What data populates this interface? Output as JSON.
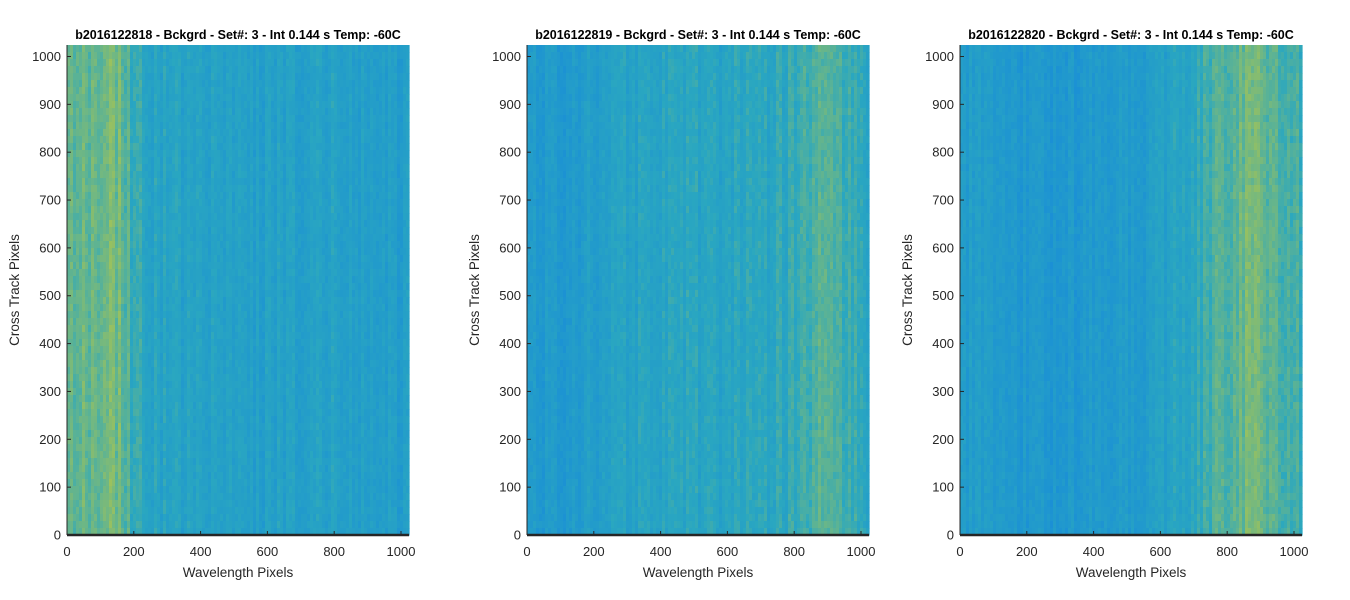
{
  "colors": {
    "low": "#1a8fd6",
    "mid": "#2aa7c0",
    "high": "#9fc25a",
    "axis": "#262626"
  },
  "chart_data": [
    {
      "type": "heatmap",
      "title": "b2016122818 - Bckgrd - Set#: 3 - Int 0.144 s Temp: -60C",
      "xlabel": "Wavelength Pixels",
      "ylabel": "Cross Track Pixels",
      "xlim": [
        0,
        1024
      ],
      "ylim": [
        0,
        1024
      ],
      "xticks": [
        0,
        200,
        400,
        600,
        800,
        1000
      ],
      "yticks": [
        0,
        100,
        200,
        300,
        400,
        500,
        600,
        700,
        800,
        900,
        1000
      ],
      "grid": false,
      "colormap": "parula",
      "column_profile": {
        "x": [
          0,
          60,
          120,
          160,
          200,
          260,
          350,
          450,
          550,
          650,
          750,
          850,
          950,
          1024
        ],
        "relative_level": [
          0.7,
          0.78,
          0.82,
          0.8,
          0.55,
          0.4,
          0.37,
          0.35,
          0.33,
          0.35,
          0.4,
          0.33,
          0.3,
          0.3
        ]
      }
    },
    {
      "type": "heatmap",
      "title": "b2016122819 - Bckgrd - Set#: 3 - Int 0.144 s Temp: -60C",
      "xlabel": "Wavelength Pixels",
      "ylabel": "Cross Track Pixels",
      "xlim": [
        0,
        1024
      ],
      "ylim": [
        0,
        1024
      ],
      "xticks": [
        0,
        200,
        400,
        600,
        800,
        1000
      ],
      "yticks": [
        0,
        100,
        200,
        300,
        400,
        500,
        600,
        700,
        800,
        900,
        1000
      ],
      "grid": false,
      "colormap": "parula",
      "column_profile": {
        "x": [
          0,
          100,
          200,
          300,
          400,
          500,
          600,
          700,
          800,
          850,
          900,
          950,
          1024
        ],
        "relative_level": [
          0.2,
          0.22,
          0.3,
          0.38,
          0.45,
          0.45,
          0.42,
          0.45,
          0.52,
          0.65,
          0.78,
          0.6,
          0.45
        ]
      }
    },
    {
      "type": "heatmap",
      "title": "b2016122820 - Bckgrd - Set#: 3 - Int 0.144 s Temp: -60C",
      "xlabel": "Wavelength Pixels",
      "ylabel": "Cross Track Pixels",
      "xlim": [
        0,
        1024
      ],
      "ylim": [
        0,
        1024
      ],
      "xticks": [
        0,
        200,
        400,
        600,
        800,
        1000
      ],
      "yticks": [
        0,
        100,
        200,
        300,
        400,
        500,
        600,
        700,
        800,
        900,
        1000
      ],
      "grid": false,
      "colormap": "parula",
      "column_profile": {
        "x": [
          0,
          100,
          200,
          300,
          400,
          500,
          600,
          700,
          750,
          800,
          850,
          900,
          1000,
          1024
        ],
        "relative_level": [
          0.3,
          0.25,
          0.2,
          0.18,
          0.2,
          0.25,
          0.32,
          0.5,
          0.62,
          0.7,
          0.8,
          0.78,
          0.65,
          0.6
        ]
      }
    }
  ]
}
